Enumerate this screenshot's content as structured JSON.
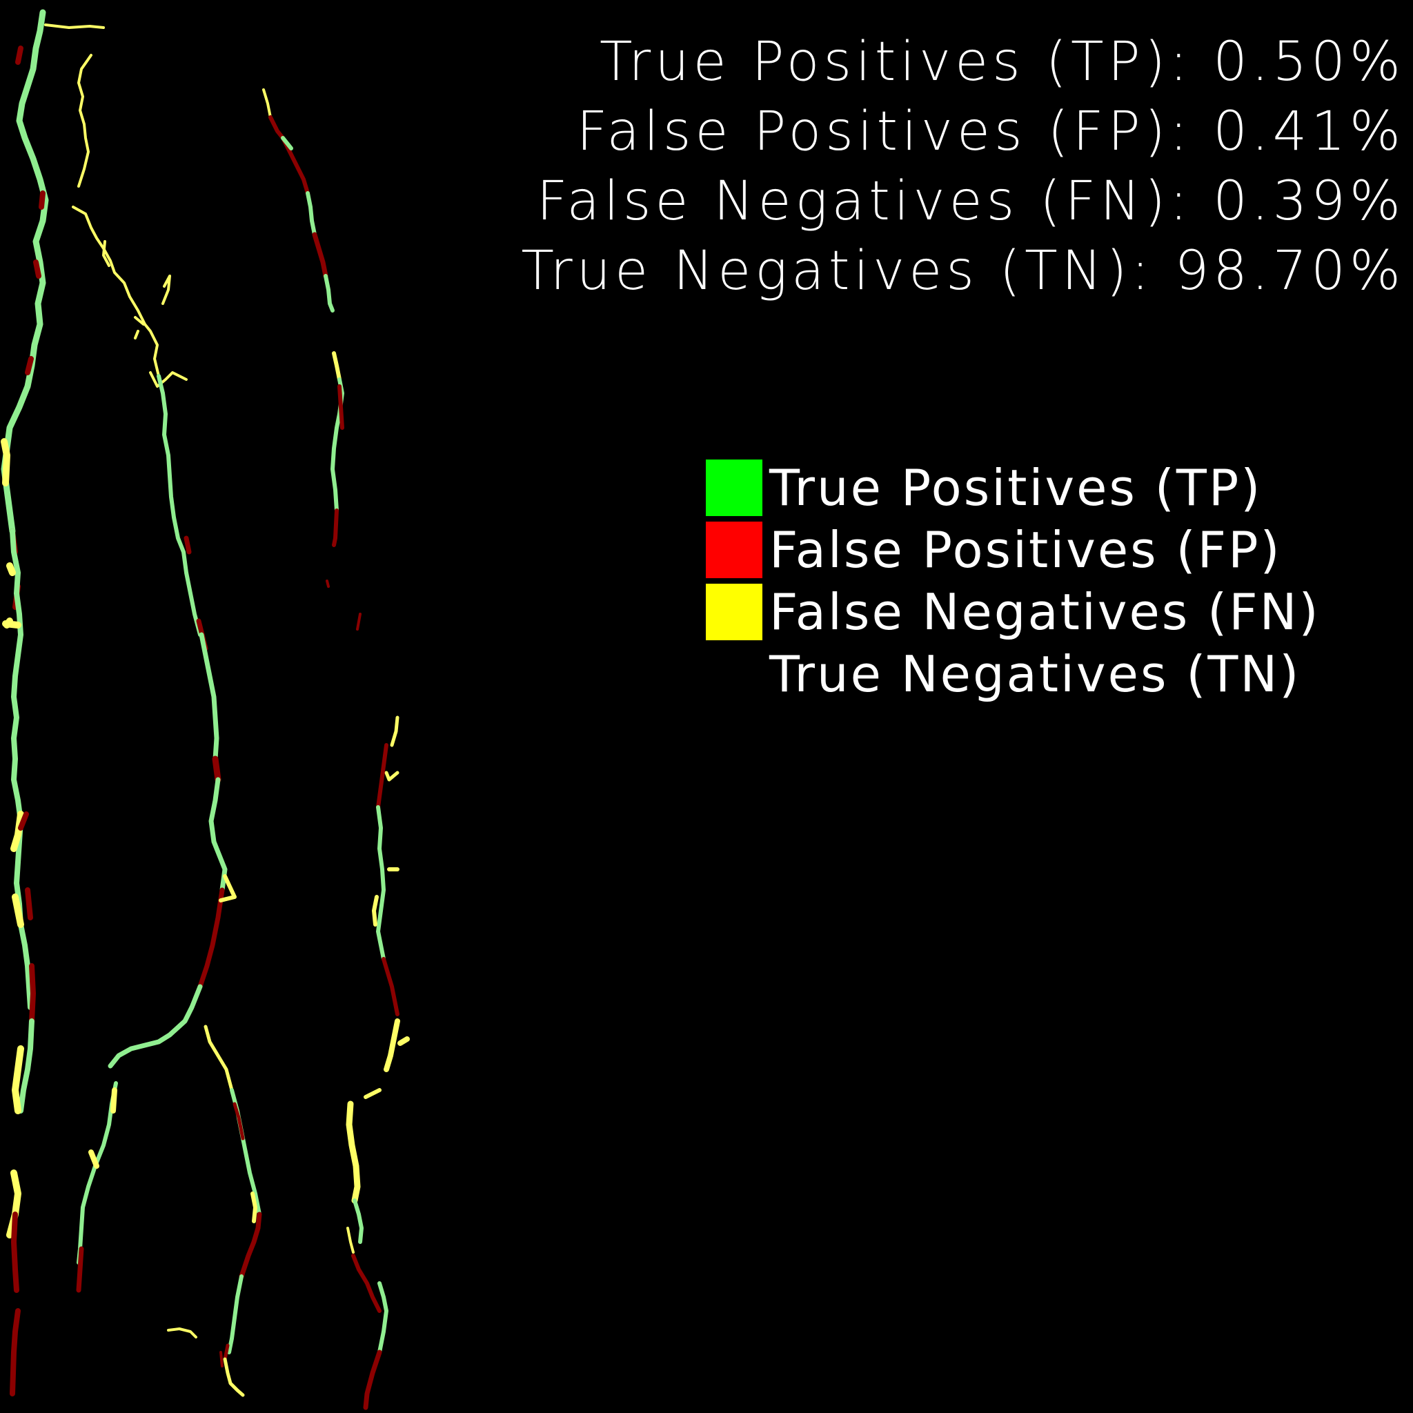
{
  "colors": {
    "background": "#000000",
    "tp": "#90ee90",
    "fp": "#8b0000",
    "fn": "#ffff66",
    "text": "#ffffff"
  },
  "stats": {
    "tp": "True Positives (TP): 0.50%",
    "fp": "False Positives (FP): 0.41%",
    "fn": "False Negatives (FN): 0.39%",
    "tn": "True Negatives (TN): 98.70%"
  },
  "legend": [
    {
      "label": "True Positives (TP)",
      "color": "#00ff00"
    },
    {
      "label": "False Positives (FP)",
      "color": "#ff0000"
    },
    {
      "label": "False Negatives (FN)",
      "color": "#ffff00"
    },
    {
      "label": "True Negatives (TN)",
      "color": "#000000"
    }
  ]
}
